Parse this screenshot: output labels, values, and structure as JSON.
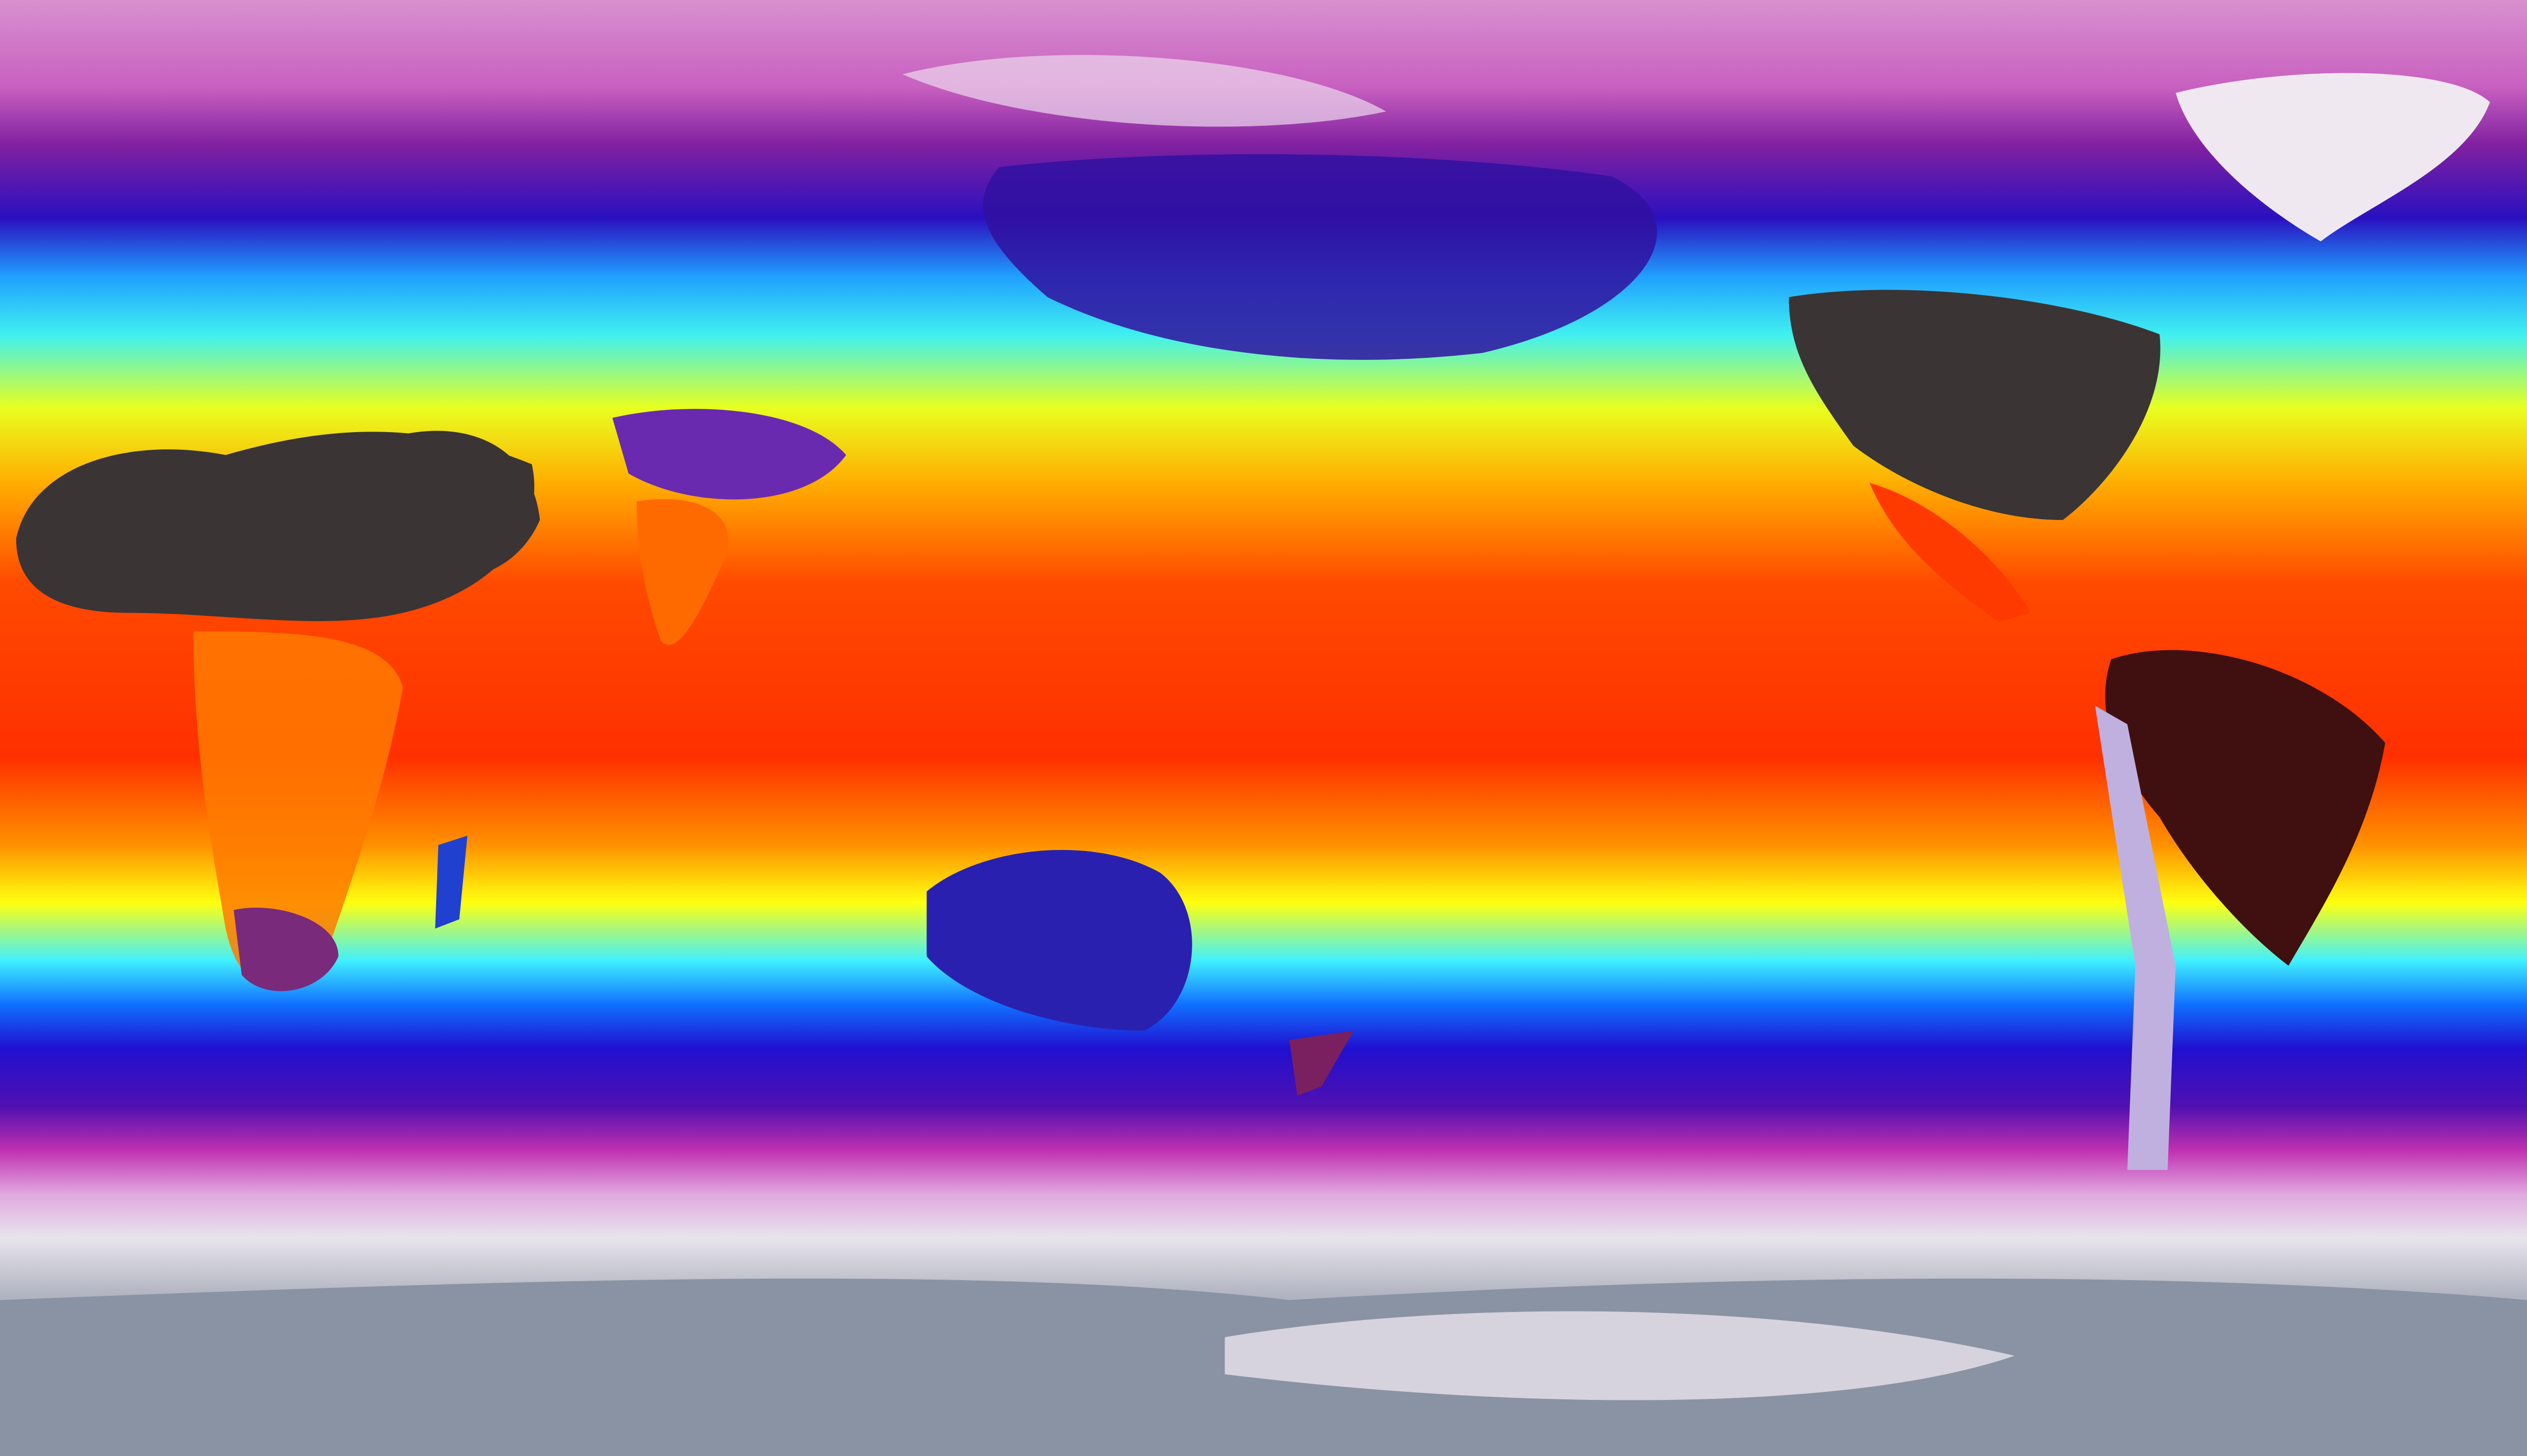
{
  "map": {
    "projection": "equirectangular",
    "variable": "temperature",
    "palette": {
      "coldest": "#8a93a3",
      "very_cold": "#e8dce8",
      "cold": "#c040b0",
      "cool": "#2010d0",
      "mild": "#30e0ff",
      "warm": "#ffff00",
      "hot": "#ff3000",
      "hottest": "#3a3a3a"
    }
  }
}
